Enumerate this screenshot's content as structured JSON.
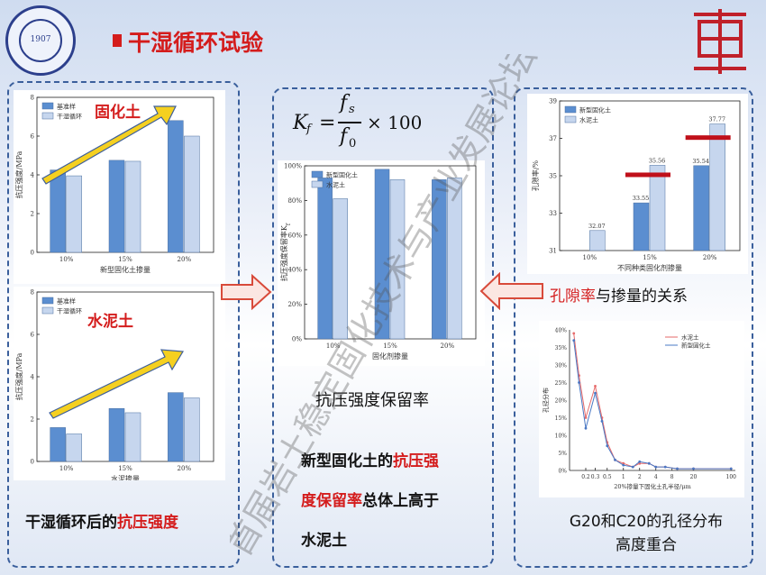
{
  "header": {
    "title": "干湿循环试验",
    "logo_text": "1907",
    "logo_ring": "TONGJI UNIVERSITY"
  },
  "colors": {
    "dark_bar": "#5b8ed0",
    "light_bar": "#c6d6ee",
    "accent_red": "#d41c1c",
    "panel_border": "#3a5f9c",
    "trend_arrow": "#f5d020"
  },
  "watermark": "首届岩土稳定固化技术与产业发展论坛",
  "left_panel": {
    "caption_prefix": "干湿循环后的",
    "caption_highlight": "抗压强度"
  },
  "middle_panel": {
    "formula_lhs": "K",
    "formula_sub_f": "f",
    "formula_num": "f",
    "formula_num_sub": "s",
    "formula_den": "f",
    "formula_den_sub": "0",
    "formula_rest": "× 100",
    "chart_caption": "抗压强度保留率",
    "text_l1_a": "新型固化土的",
    "text_l1_b": "抗压强",
    "text_l2_a": "度保留率",
    "text_l2_b": "总体上高于",
    "text_l3": "水泥土"
  },
  "right_panel": {
    "caption1_a": "孔隙率",
    "caption1_b": "与掺量的关系",
    "caption2_l1": "G20和C20的孔径分布",
    "caption2_l2": "高度重合"
  },
  "chart_data": [
    {
      "type": "bar",
      "overlay_label": "固化土",
      "ylabel": "抗压强度/MPa",
      "xlabel": "新型固化土掺量",
      "categories": [
        "10%",
        "15%",
        "20%"
      ],
      "ylim": [
        0,
        8
      ],
      "yticks": [
        0,
        2,
        4,
        6,
        8
      ],
      "legend_position": "top-left",
      "series": [
        {
          "name": "基准样",
          "values": [
            4.25,
            4.75,
            6.8
          ]
        },
        {
          "name": "干湿循环",
          "values": [
            3.95,
            4.7,
            6.0
          ]
        }
      ]
    },
    {
      "type": "bar",
      "overlay_label": "水泥土",
      "ylabel": "抗压强度/MPa",
      "xlabel": "水泥掺量",
      "categories": [
        "10%",
        "15%",
        "20%"
      ],
      "ylim": [
        0,
        8
      ],
      "yticks": [
        0,
        2,
        4,
        6,
        8
      ],
      "legend_position": "top-left",
      "series": [
        {
          "name": "基准样",
          "values": [
            1.6,
            2.5,
            3.25
          ]
        },
        {
          "name": "干湿循环",
          "values": [
            1.3,
            2.3,
            3.0
          ]
        }
      ]
    },
    {
      "type": "bar",
      "ylabel": "抗压强度保留率K",
      "ylabel_sub": "f",
      "xlabel": "固化剂掺量",
      "categories": [
        "10%",
        "15%",
        "20%"
      ],
      "ylim": [
        0,
        100
      ],
      "ytick_labels": [
        "0%",
        "20%",
        "40%",
        "60%",
        "80%",
        "100%"
      ],
      "legend_position": "top-left",
      "series": [
        {
          "name": "新型固化土",
          "values": [
            93,
            98,
            92
          ]
        },
        {
          "name": "水泥土",
          "values": [
            81,
            92,
            93
          ]
        }
      ]
    },
    {
      "type": "bar",
      "ylabel": "孔隙率/%",
      "xlabel": "不同种类固化剂掺量",
      "categories": [
        "10%",
        "15%",
        "20%"
      ],
      "ylim": [
        31,
        39
      ],
      "yticks": [
        31,
        33,
        35,
        37,
        39
      ],
      "legend_position": "top-left",
      "series": [
        {
          "name": "新型固化土",
          "values": [
            null,
            33.55,
            35.54
          ]
        },
        {
          "name": "水泥土",
          "values": [
            32.07,
            35.56,
            37.77
          ]
        }
      ],
      "data_labels": [
        {
          "category": "10%",
          "text": "32.07"
        },
        {
          "category": "15%",
          "text": "33.55"
        },
        {
          "category": "15%",
          "text": "35.56"
        },
        {
          "category": "20%",
          "text": "35.54"
        },
        {
          "category": "20%",
          "text": "37.77"
        }
      ]
    },
    {
      "type": "line",
      "ylabel": "孔径分布",
      "xlabel": "20%掺量下固化土孔半径/μm",
      "xscale": "log",
      "xticks": [
        "0.2",
        "0.3",
        "0.5",
        "1",
        "2",
        "4",
        "8",
        "20",
        "100"
      ],
      "yticks": [
        "0%",
        "5%",
        "10%",
        "15%",
        "20%",
        "25%",
        "30%",
        "35%",
        "40%"
      ],
      "ylim": [
        0,
        40
      ],
      "legend_position": "top-right",
      "series": [
        {
          "name": "水泥土",
          "x": [
            0.12,
            0.15,
            0.2,
            0.3,
            0.4,
            0.5,
            0.7,
            1,
            1.5,
            2,
            3,
            4,
            6,
            10,
            20,
            100
          ],
          "y": [
            39,
            27,
            15,
            24,
            15,
            8,
            3,
            2,
            1,
            2,
            2,
            1,
            1,
            0.5,
            0.5,
            0.5
          ]
        },
        {
          "name": "新型固化土",
          "x": [
            0.12,
            0.15,
            0.2,
            0.3,
            0.4,
            0.5,
            0.7,
            1,
            1.5,
            2,
            3,
            4,
            6,
            10,
            20,
            100
          ],
          "y": [
            37,
            25,
            12,
            22,
            14,
            7,
            3,
            1.5,
            1,
            2.5,
            2,
            1,
            1,
            0.5,
            0.5,
            0.5
          ]
        }
      ]
    }
  ]
}
